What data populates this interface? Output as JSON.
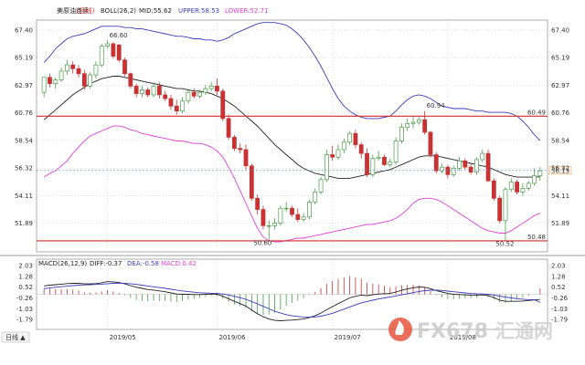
{
  "header": {
    "instrument": "美原油连续",
    "period_tag": "(日线)",
    "boll_label": "BOLL(26,2)",
    "mid_label": "MID:55.62",
    "upper_label": "UPPER:58.53",
    "lower_label": "LOWER:52.71"
  },
  "macd_header": {
    "params": "MACD(26,12,9)",
    "diff_label": "DIFF:-0.37",
    "dea_label": "DEA:-0.58",
    "macd_label": "MACD:0.42"
  },
  "footer": {
    "period_button": "日线 ▲",
    "dates": [
      "2019/05",
      "2019/06",
      "2019/07",
      "2019/08"
    ]
  },
  "watermark": {
    "brand": "FX678",
    "brand_cn": "汇通网"
  },
  "colors": {
    "up": "#4a9b4a",
    "down": "#c83232",
    "mid": "#222222",
    "upper": "#3b3bbd",
    "lower": "#e040d6",
    "support_resistance": "#d42a2a",
    "diff": "#222222",
    "dea": "#3b3bbd",
    "grid": "#c9c9c9"
  },
  "chart_data": [
    {
      "type": "candlestick",
      "title": "美原油连续 日线 BOLL(26,2)",
      "ylim": [
        49.6,
        68.2
      ],
      "y_ticks": [
        67.4,
        65.19,
        62.97,
        60.76,
        58.54,
        56.32,
        54.11,
        51.89
      ],
      "x_tick_labels": [
        "2019/05",
        "2019/06",
        "2019/07",
        "2019/08"
      ],
      "x_tick_index": [
        11,
        30,
        50,
        70
      ],
      "horizontal_lines": [
        {
          "value": 60.49,
          "label": "60.49"
        },
        {
          "value": 50.48,
          "label": "50.48"
        }
      ],
      "current_price": {
        "value": 56.13,
        "label": "56.13"
      },
      "annotations": [
        {
          "text": "66.60",
          "index": 11,
          "value": 66.6
        },
        {
          "text": "50.60",
          "index": 36,
          "value": 50.6
        },
        {
          "text": "60.94",
          "index": 66,
          "value": 60.94
        },
        {
          "text": "50.52",
          "index": 78,
          "value": 50.52
        }
      ],
      "candles": {
        "open": [
          62.4,
          63.6,
          63.1,
          63.4,
          64.1,
          64.6,
          64.3,
          63.9,
          62.9,
          63.8,
          64.6,
          66.1,
          66.3,
          66.2,
          65.0,
          63.9,
          62.9,
          62.3,
          62.6,
          62.2,
          62.9,
          62.2,
          61.9,
          61.3,
          60.9,
          61.7,
          62.4,
          62.1,
          62.4,
          62.7,
          62.9,
          62.5,
          60.3,
          58.8,
          57.9,
          57.8,
          56.5,
          53.9,
          53.0,
          51.7,
          51.7,
          51.9,
          53.1,
          53.1,
          52.6,
          52.2,
          52.4,
          53.6,
          54.4,
          55.4,
          57.4,
          57.2,
          57.8,
          58.4,
          59.1,
          58.2,
          57.5,
          55.8,
          57.1,
          57.2,
          56.6,
          56.8,
          58.5,
          59.6,
          59.9,
          60.0,
          60.2,
          59.2,
          57.4,
          56.1,
          56.4,
          55.8,
          56.3,
          56.9,
          56.4,
          56.0,
          57.0,
          57.5,
          55.3,
          53.9,
          52.1,
          54.6,
          55.2,
          54.4,
          54.7,
          55.1,
          55.7
        ],
        "high": [
          63.1,
          63.9,
          63.6,
          64.4,
          65.0,
          64.9,
          64.6,
          64.2,
          64.0,
          64.9,
          66.3,
          66.6,
          66.4,
          66.3,
          65.2,
          64.0,
          63.1,
          62.9,
          62.8,
          63.2,
          63.2,
          62.5,
          62.2,
          61.8,
          62.0,
          62.6,
          62.7,
          62.6,
          63.0,
          63.2,
          63.5,
          62.7,
          60.6,
          59.0,
          58.3,
          58.2,
          56.7,
          54.2,
          53.3,
          52.1,
          52.3,
          53.3,
          53.6,
          53.3,
          53.1,
          52.7,
          53.8,
          54.7,
          55.6,
          57.8,
          58.1,
          58.2,
          58.7,
          59.3,
          59.4,
          58.4,
          57.9,
          57.4,
          57.7,
          57.4,
          57.1,
          58.8,
          59.9,
          60.3,
          60.5,
          60.4,
          60.9,
          59.3,
          57.6,
          56.7,
          56.6,
          56.5,
          57.2,
          57.1,
          56.7,
          57.2,
          57.8,
          57.8,
          55.5,
          54.1,
          54.8,
          55.5,
          55.4,
          55.1,
          55.3,
          56.3,
          56.4
        ],
        "low": [
          62.0,
          62.8,
          62.7,
          63.2,
          63.8,
          63.9,
          63.6,
          62.6,
          62.7,
          63.5,
          64.4,
          65.9,
          65.1,
          64.8,
          63.7,
          62.7,
          62.0,
          62.0,
          62.0,
          62.0,
          61.9,
          61.7,
          61.0,
          60.6,
          60.7,
          61.5,
          61.9,
          61.9,
          62.2,
          62.5,
          62.2,
          60.1,
          58.6,
          57.7,
          57.5,
          56.2,
          53.7,
          52.6,
          51.4,
          50.6,
          51.4,
          51.7,
          52.8,
          52.4,
          52.0,
          52.0,
          52.2,
          53.4,
          54.2,
          55.2,
          56.9,
          57.0,
          57.5,
          58.2,
          57.9,
          57.1,
          55.6,
          55.6,
          56.9,
          56.5,
          56.4,
          56.6,
          58.3,
          59.3,
          59.5,
          59.8,
          59.0,
          57.2,
          55.9,
          55.9,
          55.5,
          55.6,
          56.1,
          56.2,
          55.8,
          55.8,
          56.8,
          55.2,
          53.7,
          51.9,
          50.5,
          54.4,
          54.2,
          54.1,
          54.5,
          54.9,
          55.3
        ],
        "close": [
          63.6,
          63.1,
          63.4,
          64.1,
          64.6,
          64.3,
          63.9,
          62.9,
          63.8,
          64.6,
          66.1,
          66.3,
          65.3,
          65.0,
          63.9,
          62.9,
          62.3,
          62.6,
          62.2,
          62.9,
          62.2,
          61.9,
          61.3,
          60.9,
          61.7,
          62.4,
          62.1,
          62.4,
          62.7,
          62.9,
          62.5,
          60.3,
          58.8,
          57.9,
          57.8,
          56.5,
          53.9,
          53.0,
          51.7,
          51.7,
          51.9,
          53.1,
          53.1,
          52.6,
          52.2,
          52.4,
          53.6,
          54.4,
          55.4,
          57.4,
          57.2,
          57.8,
          58.4,
          59.1,
          58.2,
          57.5,
          55.8,
          57.1,
          57.2,
          56.6,
          56.8,
          58.5,
          59.6,
          59.9,
          60.0,
          60.2,
          59.2,
          57.4,
          56.1,
          56.4,
          55.8,
          56.3,
          56.9,
          56.4,
          56.0,
          57.0,
          57.5,
          55.3,
          53.9,
          52.1,
          54.6,
          55.2,
          54.4,
          54.7,
          55.1,
          55.7,
          56.1
        ]
      },
      "series": [
        {
          "name": "MID",
          "values": [
            60.2,
            60.6,
            61.0,
            61.4,
            61.8,
            62.2,
            62.5,
            62.8,
            63.1,
            63.3,
            63.5,
            63.6,
            63.7,
            63.7,
            63.6,
            63.5,
            63.4,
            63.3,
            63.2,
            63.1,
            63.0,
            62.9,
            62.8,
            62.7,
            62.7,
            62.6,
            62.5,
            62.5,
            62.4,
            62.3,
            62.1,
            61.9,
            61.6,
            61.3,
            60.9,
            60.5,
            60.1,
            59.7,
            59.2,
            58.7,
            58.2,
            57.8,
            57.4,
            57.0,
            56.6,
            56.3,
            56.1,
            55.9,
            55.8,
            55.7,
            55.6,
            55.5,
            55.5,
            55.5,
            55.6,
            55.7,
            55.8,
            55.9,
            56.0,
            56.1,
            56.2,
            56.4,
            56.6,
            56.8,
            57.0,
            57.2,
            57.3,
            57.3,
            57.3,
            57.2,
            57.1,
            57.0,
            56.9,
            56.8,
            56.7,
            56.6,
            56.5,
            56.4,
            56.2,
            56.0,
            55.8,
            55.7,
            55.6,
            55.6,
            55.6,
            55.6,
            55.62
          ]
        },
        {
          "name": "UPPER",
          "values": [
            64.8,
            65.3,
            65.9,
            66.3,
            66.7,
            66.9,
            67.0,
            67.1,
            67.3,
            67.5,
            67.7,
            67.7,
            67.7,
            67.7,
            67.6,
            67.6,
            67.5,
            67.5,
            67.4,
            67.3,
            67.2,
            67.1,
            67.0,
            66.9,
            66.9,
            66.8,
            66.7,
            66.7,
            66.6,
            66.6,
            66.5,
            66.6,
            66.8,
            67.1,
            67.3,
            67.5,
            67.7,
            67.9,
            68.0,
            68.0,
            68.0,
            67.9,
            67.8,
            67.5,
            67.1,
            66.6,
            66.0,
            65.3,
            64.5,
            63.6,
            62.7,
            61.9,
            61.3,
            60.9,
            60.6,
            60.4,
            60.3,
            60.3,
            60.3,
            60.4,
            60.5,
            60.9,
            61.4,
            61.8,
            62.1,
            62.2,
            62.1,
            61.9,
            61.6,
            61.3,
            61.2,
            61.1,
            61.1,
            61.1,
            61.0,
            60.9,
            60.9,
            60.8,
            60.8,
            60.8,
            60.8,
            60.7,
            60.5,
            60.1,
            59.6,
            59.0,
            58.53
          ]
        },
        {
          "name": "LOWER",
          "values": [
            55.6,
            55.9,
            56.1,
            56.5,
            56.9,
            57.5,
            58.0,
            58.5,
            58.9,
            59.1,
            59.3,
            59.5,
            59.7,
            59.7,
            59.6,
            59.4,
            59.3,
            59.1,
            59.0,
            58.9,
            58.8,
            58.7,
            58.6,
            58.5,
            58.5,
            58.4,
            58.3,
            58.3,
            58.2,
            58.0,
            57.7,
            57.2,
            56.4,
            55.5,
            54.5,
            53.5,
            52.5,
            51.5,
            50.8,
            50.5,
            50.4,
            50.4,
            50.5,
            50.6,
            50.7,
            50.7,
            50.8,
            50.9,
            51.0,
            51.1,
            51.2,
            51.3,
            51.4,
            51.5,
            51.6,
            51.7,
            51.8,
            51.8,
            51.9,
            52.0,
            52.1,
            52.3,
            52.6,
            53.0,
            53.5,
            53.8,
            53.9,
            53.9,
            53.8,
            53.6,
            53.3,
            53.0,
            52.7,
            52.4,
            52.1,
            51.8,
            51.5,
            51.3,
            51.2,
            51.1,
            51.1,
            51.3,
            51.6,
            51.9,
            52.2,
            52.5,
            52.71
          ]
        }
      ]
    },
    {
      "type": "macd",
      "title": "MACD(26,12,9)",
      "ylim": [
        -2.5,
        2.5
      ],
      "y_ticks": [
        2.03,
        1.28,
        0.52,
        -0.26,
        -1.03,
        -1.79
      ],
      "series": [
        {
          "name": "DIFF",
          "values": [
            0.6,
            0.65,
            0.68,
            0.72,
            0.76,
            0.78,
            0.78,
            0.74,
            0.74,
            0.76,
            0.82,
            0.9,
            0.88,
            0.84,
            0.74,
            0.62,
            0.5,
            0.42,
            0.34,
            0.3,
            0.24,
            0.18,
            0.1,
            0.02,
            0.0,
            0.0,
            -0.02,
            -0.02,
            0.0,
            0.02,
            0.0,
            -0.14,
            -0.32,
            -0.5,
            -0.66,
            -0.84,
            -1.12,
            -1.38,
            -1.6,
            -1.76,
            -1.86,
            -1.88,
            -1.86,
            -1.84,
            -1.8,
            -1.76,
            -1.66,
            -1.52,
            -1.34,
            -1.1,
            -0.88,
            -0.66,
            -0.46,
            -0.26,
            -0.14,
            -0.06,
            -0.1,
            -0.04,
            0.02,
            0.04,
            0.06,
            0.16,
            0.28,
            0.38,
            0.46,
            0.52,
            0.5,
            0.4,
            0.26,
            0.16,
            0.06,
            0.0,
            -0.02,
            -0.04,
            -0.08,
            -0.08,
            -0.04,
            -0.1,
            -0.24,
            -0.42,
            -0.5,
            -0.5,
            -0.5,
            -0.48,
            -0.44,
            -0.4,
            -0.37
          ]
        },
        {
          "name": "DEA",
          "values": [
            0.4,
            0.45,
            0.5,
            0.54,
            0.58,
            0.62,
            0.65,
            0.67,
            0.68,
            0.7,
            0.72,
            0.75,
            0.78,
            0.79,
            0.78,
            0.75,
            0.7,
            0.65,
            0.59,
            0.53,
            0.48,
            0.42,
            0.36,
            0.3,
            0.24,
            0.19,
            0.15,
            0.11,
            0.09,
            0.07,
            0.06,
            0.02,
            -0.05,
            -0.14,
            -0.24,
            -0.36,
            -0.51,
            -0.68,
            -0.86,
            -1.04,
            -1.2,
            -1.34,
            -1.45,
            -1.53,
            -1.58,
            -1.62,
            -1.63,
            -1.61,
            -1.56,
            -1.47,
            -1.35,
            -1.21,
            -1.06,
            -0.9,
            -0.75,
            -0.61,
            -0.51,
            -0.42,
            -0.33,
            -0.26,
            -0.19,
            -0.12,
            -0.04,
            0.04,
            0.12,
            0.2,
            0.26,
            0.29,
            0.29,
            0.27,
            0.23,
            0.18,
            0.14,
            0.1,
            0.06,
            0.03,
            0.02,
            0.0,
            -0.05,
            -0.13,
            -0.2,
            -0.26,
            -0.31,
            -0.35,
            -0.38,
            -0.39,
            -0.58
          ]
        },
        {
          "name": "MACD",
          "values": [
            0.4,
            0.4,
            0.36,
            0.36,
            0.36,
            0.32,
            0.26,
            0.14,
            0.12,
            0.12,
            0.2,
            0.3,
            0.2,
            0.1,
            -0.08,
            -0.26,
            -0.4,
            -0.46,
            -0.5,
            -0.46,
            -0.48,
            -0.48,
            -0.52,
            -0.56,
            -0.48,
            -0.38,
            -0.34,
            -0.26,
            -0.18,
            -0.1,
            -0.12,
            -0.32,
            -0.54,
            -0.72,
            -0.84,
            -0.96,
            -1.22,
            -1.4,
            -1.48,
            -1.44,
            -1.32,
            -1.08,
            -0.82,
            -0.62,
            -0.44,
            -0.28,
            -0.06,
            0.18,
            0.44,
            0.74,
            0.94,
            1.1,
            1.2,
            1.28,
            1.22,
            1.1,
            0.82,
            0.76,
            0.7,
            0.6,
            0.5,
            0.56,
            0.64,
            0.68,
            0.68,
            0.64,
            0.48,
            0.22,
            -0.06,
            -0.22,
            -0.34,
            -0.36,
            -0.32,
            -0.28,
            -0.28,
            -0.22,
            -0.12,
            -0.2,
            -0.38,
            -0.58,
            -0.6,
            -0.48,
            -0.38,
            -0.26,
            -0.12,
            -0.02,
            0.42
          ]
        }
      ]
    }
  ]
}
